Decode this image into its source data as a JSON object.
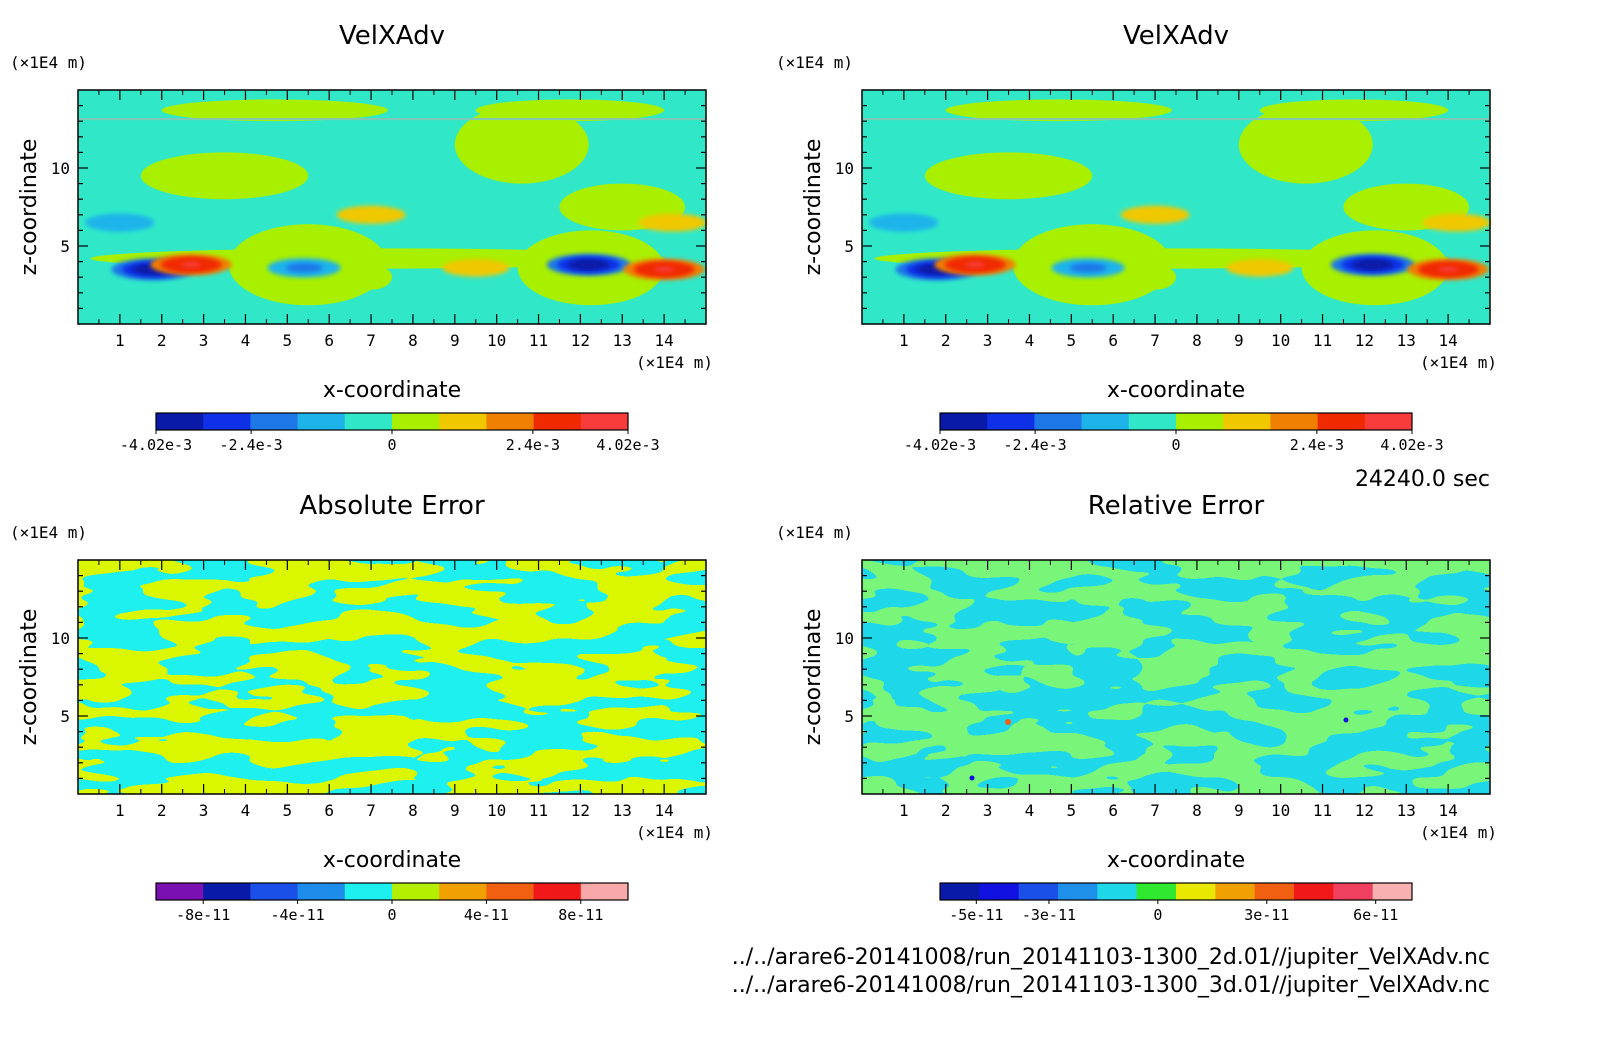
{
  "footer": {
    "time_label": "24240.0 sec",
    "file_2d": "../../arare6-20141008/run_20141103-1300_2d.01//jupiter_VelXAdv.nc",
    "file_3d": "../../arare6-20141008/run_20141103-1300_3d.01//jupiter_VelXAdv.nc"
  },
  "chart_data": [
    {
      "type": "heatmap",
      "title": "VelXAdv",
      "xlabel": "x-coordinate",
      "ylabel": "z-coordinate",
      "x_unit": "(×1E4 m)",
      "y_unit": "(×1E4 m)",
      "xlim": [
        0,
        15
      ],
      "ylim": [
        0,
        15
      ],
      "xticks": [
        1,
        2,
        3,
        4,
        5,
        6,
        7,
        8,
        9,
        10,
        11,
        12,
        13,
        14
      ],
      "yticks": [
        5,
        10
      ],
      "colorbar": {
        "colors": [
          "#0a1aa8",
          "#1030e8",
          "#1e78e8",
          "#1eb4ea",
          "#30e8c8",
          "#a8f000",
          "#f0c800",
          "#f08000",
          "#f02a00",
          "#f83c3c"
        ],
        "tick_labels": [
          "-4.02e-3",
          "-2.4e-3",
          "0",
          "2.4e-3",
          "4.02e-3"
        ],
        "tick_values": [
          -0.00402,
          -0.0024,
          0,
          0.0024,
          0.00402
        ],
        "range": [
          -0.00402,
          0.00402
        ]
      },
      "features": [
        {
          "x": 1.8,
          "z": 3.5,
          "value": -0.004
        },
        {
          "x": 2.7,
          "z": 3.8,
          "value": 0.0036
        },
        {
          "x": 5.4,
          "z": 3.6,
          "value": -0.0022
        },
        {
          "x": 7.0,
          "z": 7.0,
          "value": 0.0015
        },
        {
          "x": 9.5,
          "z": 3.6,
          "value": 0.0012
        },
        {
          "x": 12.2,
          "z": 3.8,
          "value": -0.004
        },
        {
          "x": 14.0,
          "z": 3.5,
          "value": 0.0036
        },
        {
          "x": 1.0,
          "z": 6.5,
          "value": -0.0015
        },
        {
          "x": 14.2,
          "z": 6.5,
          "value": 0.0014
        }
      ]
    },
    {
      "type": "heatmap",
      "title": "VelXAdv",
      "xlabel": "x-coordinate",
      "ylabel": "z-coordinate",
      "x_unit": "(×1E4 m)",
      "y_unit": "(×1E4 m)",
      "xlim": [
        0,
        15
      ],
      "ylim": [
        0,
        15
      ],
      "xticks": [
        1,
        2,
        3,
        4,
        5,
        6,
        7,
        8,
        9,
        10,
        11,
        12,
        13,
        14
      ],
      "yticks": [
        5,
        10
      ],
      "colorbar": {
        "colors": [
          "#0a1aa8",
          "#1030e8",
          "#1e78e8",
          "#1eb4ea",
          "#30e8c8",
          "#a8f000",
          "#f0c800",
          "#f08000",
          "#f02a00",
          "#f83c3c"
        ],
        "tick_labels": [
          "-4.02e-3",
          "-2.4e-3",
          "0",
          "2.4e-3",
          "4.02e-3"
        ],
        "tick_values": [
          -0.00402,
          -0.0024,
          0,
          0.0024,
          0.00402
        ],
        "range": [
          -0.00402,
          0.00402
        ]
      },
      "features": [
        {
          "x": 1.8,
          "z": 3.5,
          "value": -0.004
        },
        {
          "x": 2.7,
          "z": 3.8,
          "value": 0.0036
        },
        {
          "x": 5.4,
          "z": 3.6,
          "value": -0.0022
        },
        {
          "x": 7.0,
          "z": 7.0,
          "value": 0.0015
        },
        {
          "x": 9.5,
          "z": 3.6,
          "value": 0.0012
        },
        {
          "x": 12.2,
          "z": 3.8,
          "value": -0.004
        },
        {
          "x": 14.0,
          "z": 3.5,
          "value": 0.0036
        },
        {
          "x": 1.0,
          "z": 6.5,
          "value": -0.0015
        },
        {
          "x": 14.2,
          "z": 6.5,
          "value": 0.0014
        }
      ]
    },
    {
      "type": "heatmap",
      "title": "Absolute Error",
      "xlabel": "x-coordinate",
      "ylabel": "z-coordinate",
      "x_unit": "(×1E4 m)",
      "y_unit": "(×1E4 m)",
      "xlim": [
        0,
        15
      ],
      "ylim": [
        0,
        15
      ],
      "xticks": [
        1,
        2,
        3,
        4,
        5,
        6,
        7,
        8,
        9,
        10,
        11,
        12,
        13,
        14
      ],
      "yticks": [
        5,
        10
      ],
      "colorbar": {
        "colors": [
          "#7a10b0",
          "#0a1aa8",
          "#1a50e8",
          "#1e8cea",
          "#1ef0f0",
          "#b4ee00",
          "#f0a000",
          "#f06010",
          "#f01818",
          "#f8a8a8"
        ],
        "tick_labels": [
          "-8e-11",
          "-4e-11",
          "0",
          "4e-11",
          "8e-11"
        ],
        "tick_values": [
          -8e-11,
          -4e-11,
          0,
          4e-11,
          8e-11
        ],
        "range": [
          -1e-10,
          1e-10
        ]
      }
    },
    {
      "type": "heatmap",
      "title": "Relative Error",
      "xlabel": "x-coordinate",
      "ylabel": "z-coordinate",
      "x_unit": "(×1E4 m)",
      "y_unit": "(×1E4 m)",
      "xlim": [
        0,
        15
      ],
      "ylim": [
        0,
        15
      ],
      "xticks": [
        1,
        2,
        3,
        4,
        5,
        6,
        7,
        8,
        9,
        10,
        11,
        12,
        13,
        14
      ],
      "yticks": [
        5,
        10
      ],
      "colorbar": {
        "colors": [
          "#0a1aa8",
          "#1010e0",
          "#1a50e8",
          "#1e90ea",
          "#1ed8ea",
          "#30e830",
          "#e8e800",
          "#f0a000",
          "#f06010",
          "#f01818",
          "#f04060",
          "#f8b0b0"
        ],
        "tick_labels": [
          "-5e-11",
          "-3e-11",
          "0",
          "3e-11",
          "6e-11"
        ],
        "tick_values": [
          -5e-11,
          -3e-11,
          0,
          3e-11,
          6e-11
        ],
        "range": [
          -6e-11,
          7e-11
        ]
      }
    }
  ]
}
